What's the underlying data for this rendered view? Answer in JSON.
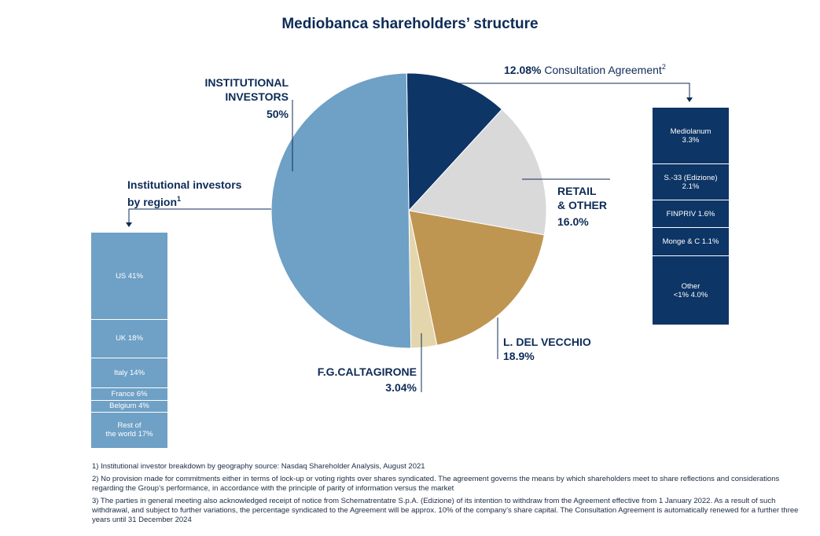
{
  "title": "Mediobanca shareholders’ structure",
  "colors": {
    "institutional": "#6fa0c6",
    "consultation": "#0d3566",
    "retail": "#d9d9d9",
    "delvecchio": "#bf9552",
    "caltagirone": "#e3d6ad",
    "text": "#0d2b57"
  },
  "chart_data": [
    {
      "type": "pie",
      "title": "Mediobanca shareholders’ structure",
      "slices": [
        {
          "key": "consultation",
          "label": "12.08% Consultation Agreement",
          "value": 12.08
        },
        {
          "key": "retail",
          "label": "RETAIL & OTHER",
          "value": 16.0
        },
        {
          "key": "delvecchio",
          "label": "L. DEL VECCHIO",
          "value": 18.9
        },
        {
          "key": "caltagirone",
          "label": "F.G.CALTAGIRONE",
          "value": 3.04
        },
        {
          "key": "institutional",
          "label": "INSTITUTIONAL INVESTORS",
          "value": 50
        }
      ]
    },
    {
      "type": "bar",
      "title": "Institutional investors by region",
      "stacked": true,
      "segments": [
        {
          "label": "US 41%",
          "value": 41
        },
        {
          "label": "UK 18%",
          "value": 18
        },
        {
          "label": "Italy 14%",
          "value": 14
        },
        {
          "label": "France 6%",
          "value": 6
        },
        {
          "label": "Belgium 4%",
          "value": 4
        },
        {
          "label": "Rest of the world 17%",
          "value": 17
        }
      ]
    },
    {
      "type": "bar",
      "title": "12.08% Consultation Agreement",
      "stacked": true,
      "segments": [
        {
          "label": "Mediolanum 3.3%",
          "value": 3.3
        },
        {
          "label": "S.-33 (Edizione) 2.1%",
          "value": 2.1
        },
        {
          "label": "FINPRIV 1.6%",
          "value": 1.6
        },
        {
          "label": "Monge & C 1.1%",
          "value": 1.1
        },
        {
          "label": "Other <1% 4.0%",
          "value": 4.0
        }
      ]
    }
  ],
  "labels": {
    "institutional_line1": "INSTITUTIONAL",
    "institutional_line2": "INVESTORS",
    "institutional_pct": "50%",
    "consult_pct": "12.08%",
    "consult_text": " Consultation Agreement",
    "consult_sup": "2",
    "retail_line1": "RETAIL",
    "retail_line2": "& OTHER",
    "retail_pct": "16.0%",
    "delvecchio_name": "L. DEL VECCHIO",
    "delvecchio_pct": "18.9%",
    "caltagirone_name": "F.G.CALTAGIRONE",
    "caltagirone_pct": "3.04%",
    "region_line1": "Institutional investors",
    "region_line2": "by region",
    "region_sup": "1"
  },
  "regions": [
    {
      "line1": "US 41%",
      "line2": ""
    },
    {
      "line1": "UK 18%",
      "line2": ""
    },
    {
      "line1": "Italy 14%",
      "line2": ""
    },
    {
      "line1": "France 6%",
      "line2": ""
    },
    {
      "line1": "Belgium 4%",
      "line2": ""
    },
    {
      "line1": "Rest of",
      "line2": "the world 17%"
    }
  ],
  "consult_members": [
    {
      "line1": "Mediolanum",
      "line2": "3.3%"
    },
    {
      "line1": "S.-33 (Edizione)",
      "line2": "2.1%"
    },
    {
      "line1": "FINPRIV 1.6%",
      "line2": ""
    },
    {
      "line1": "Monge & C 1.1%",
      "line2": ""
    },
    {
      "line1": "Other",
      "line2": "<1% 4.0%"
    }
  ],
  "footnotes": {
    "note1": "1) Institutional investor breakdown by geography source: Nasdaq Shareholder Analysis, August 2021",
    "note2": "2) No provision made for commitments either in terms of lock-up or voting rights over shares syndicated. The agreement governs the means by which shareholders meet to share reflections and considerations regarding the Group’s performance, in accordance with the principle of parity of information versus the market",
    "note3": "3) The parties in general meeting also acknowledged receipt of notice from Schematrentatre S.p.A. (Edizione) of its intention to withdraw from the Agreement effective from 1 January 2022. As a result of such withdrawal, and subject to further variations, the percentage syndicated to the Agreement will be approx. 10% of the company’s share capital. The Consultation Agreement is automatically renewed for a further three years until 31 December 2024"
  }
}
